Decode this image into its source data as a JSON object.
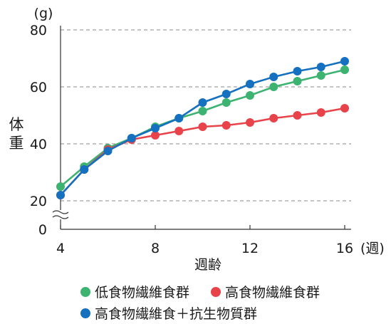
{
  "chart_data": {
    "type": "line",
    "unit_label": "(g)",
    "ylabel": "体重",
    "xlabel": "週齢",
    "x_unit_label": "(週)",
    "x_ticks": [
      "4",
      "8",
      "12",
      "16"
    ],
    "y_ticks": [
      "0",
      "20",
      "40",
      "60",
      "80"
    ],
    "xlim": [
      4,
      16
    ],
    "ylim": [
      0,
      80
    ],
    "y_axis_break": true,
    "grid": "horizontal-dashed",
    "legend_position": "bottom",
    "series": [
      {
        "name": "低食物繊維食群",
        "color": "#3cb371",
        "x": [
          4,
          5,
          6,
          7,
          8,
          9,
          10,
          11,
          12,
          13,
          14,
          15,
          16
        ],
        "values": [
          25,
          32,
          38.5,
          42,
          46,
          49,
          51.5,
          54.5,
          57,
          60,
          62,
          64,
          66
        ]
      },
      {
        "name": "高食物繊維食群",
        "color": "#e8434a",
        "x": [
          4,
          5,
          6,
          7,
          8,
          9,
          10,
          11,
          12,
          13,
          14,
          15,
          16
        ],
        "values": [
          22,
          31,
          38,
          41.5,
          43,
          44.5,
          46,
          46.5,
          47.5,
          49,
          50,
          51,
          52.5
        ]
      },
      {
        "name": "高食物繊維食＋抗生物質群",
        "color": "#1570c0",
        "x": [
          4,
          5,
          6,
          7,
          8,
          9,
          10,
          11,
          12,
          13,
          14,
          15,
          16
        ],
        "values": [
          22,
          31,
          37.5,
          42,
          45.5,
          49,
          54.5,
          57.5,
          61,
          63.5,
          65.5,
          67,
          69
        ]
      }
    ]
  }
}
